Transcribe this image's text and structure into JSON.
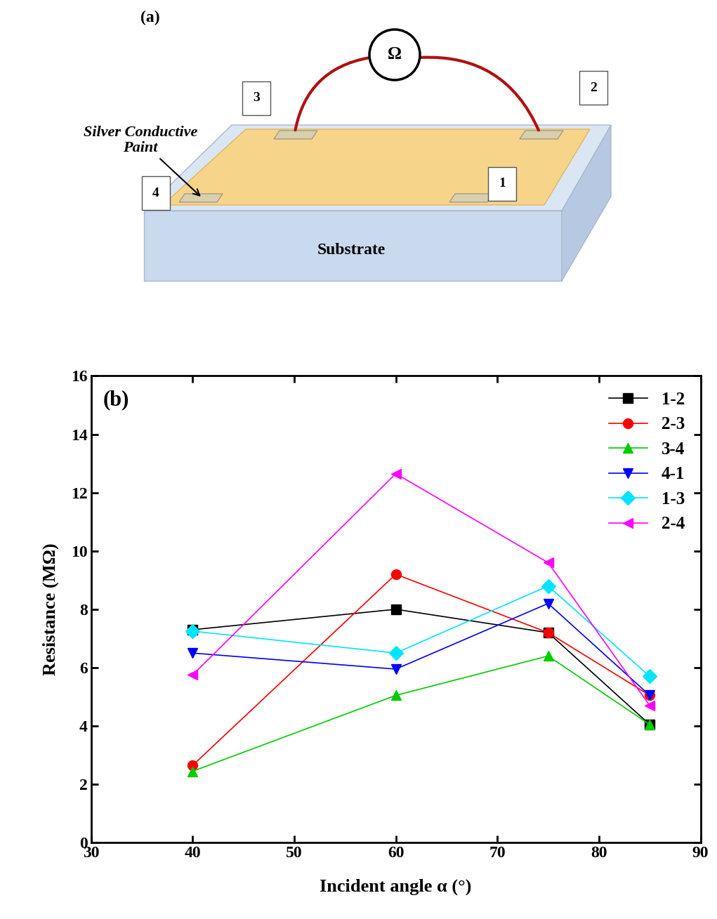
{
  "diagram": {
    "panel_label": "(a)",
    "meter": "Ω",
    "contacts": [
      "1",
      "2",
      "3",
      "4"
    ],
    "paint_label": "Silver Conductive\nPaint",
    "substrate_label": "Substrate"
  },
  "chart_data": {
    "type": "line",
    "annotations": [
      "(b)"
    ],
    "x_label": "Incident angle α (°)",
    "y_label": "Resistance (MΩ)",
    "x": [
      40,
      60,
      75,
      85
    ],
    "series": [
      {
        "name": "1-2",
        "color": "#000000",
        "marker": "square",
        "line_style": "solid",
        "values": [
          7.3,
          8.0,
          7.2,
          4.05
        ]
      },
      {
        "name": "2-3",
        "color": "#ff0000",
        "marker": "circle",
        "line_style": "solid",
        "values": [
          2.65,
          9.2,
          7.2,
          5.05
        ]
      },
      {
        "name": "3-4",
        "color": "#00cc00",
        "marker": "triangle_up",
        "line_style": "solid",
        "values": [
          2.45,
          5.05,
          6.4,
          4.05
        ]
      },
      {
        "name": "4-1",
        "color": "#0000ff",
        "marker": "triangle_down",
        "line_style": "solid",
        "values": [
          6.5,
          5.95,
          8.2,
          5.05
        ]
      },
      {
        "name": "1-3",
        "color": "#00e5ff",
        "marker": "diamond",
        "line_style": "solid",
        "values": [
          7.25,
          6.5,
          8.8,
          5.7
        ]
      },
      {
        "name": "2-4",
        "color": "#ff00ff",
        "marker": "triangle_left",
        "line_style": "solid",
        "values": [
          5.75,
          12.65,
          9.6,
          4.7
        ]
      }
    ],
    "xlim": [
      30,
      90
    ],
    "xticks": [
      30,
      40,
      50,
      60,
      70,
      80,
      90
    ],
    "ylim": [
      0,
      16
    ],
    "yticks": [
      0,
      2,
      4,
      6,
      8,
      10,
      12,
      14,
      16
    ],
    "grid": false,
    "legend": "upper right"
  }
}
